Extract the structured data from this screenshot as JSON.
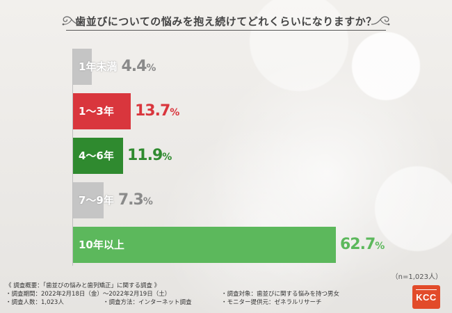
{
  "title": "歯並びについての悩みを抱え続けてどれくらいになりますか？",
  "sample_note": "（n=1,023人）",
  "chart_data": {
    "type": "bar",
    "orientation": "horizontal",
    "categories": [
      "1年未満",
      "1〜3年",
      "4〜6年",
      "7〜9年",
      "10年以上"
    ],
    "values": [
      4.4,
      13.7,
      11.9,
      7.3,
      62.7
    ],
    "value_labels": [
      "4.4",
      "13.7",
      "11.9",
      "7.3",
      "62.7"
    ],
    "unit": "%",
    "bar_colors": [
      "#c5c5c5",
      "#d9363d",
      "#2f8a2f",
      "#c5c5c5",
      "#5cb85c"
    ],
    "label_colors": [
      "#ffffff",
      "#ffffff",
      "#ffffff",
      "#ffffff",
      "#ffffff"
    ],
    "value_colors": [
      "#8a8a8a",
      "#d9363d",
      "#2f8a2f",
      "#8a8a8a",
      "#5cb85c"
    ],
    "xlim": [
      0,
      62.7
    ],
    "grid": false,
    "legend": "none"
  },
  "footer": {
    "summary_title": "《 調査概要：「歯並びの悩みと歯列矯正」に関する調査 》",
    "period": "・調査期間：2022年2月18日（金）〜2022年2月19日（土）",
    "respondents": "・調査人数：1,023人",
    "method": "・調査方法：インターネット調査",
    "target": "・調査対象：歯並びに関する悩みを持つ男女",
    "provider": "・モニター提供元：ゼネラルリサーチ"
  },
  "logo": {
    "text": "KCC",
    "color": "#e24b2a"
  }
}
